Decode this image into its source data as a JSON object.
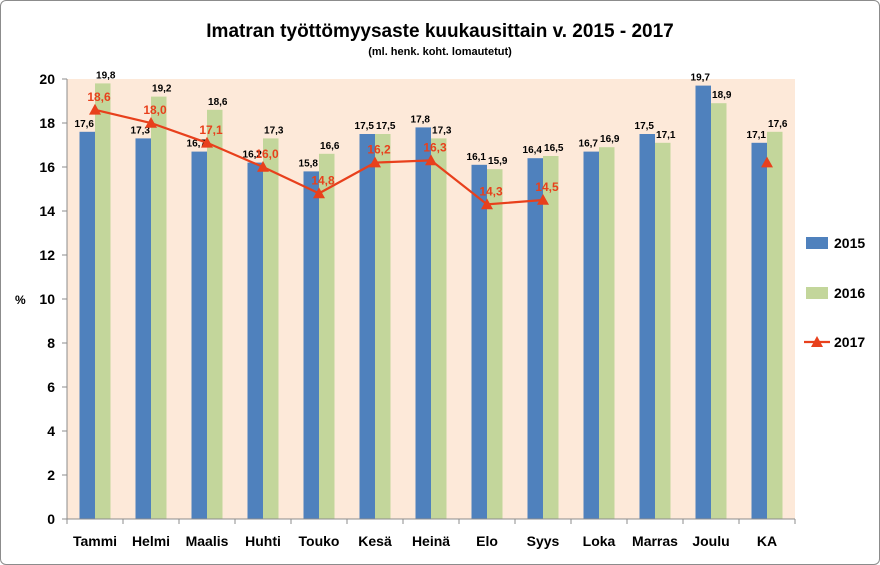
{
  "chart_data": {
    "type": "bar",
    "title": "Imatran työttömyysaste kuukausittain v.  2015 - 2017",
    "subtitle": "(ml. henk. koht. lomautetut)",
    "ylabel": "%",
    "xlabel": "",
    "ylim": [
      0,
      20
    ],
    "yticks": [
      "0",
      "2",
      "4",
      "6",
      "8",
      "10",
      "12",
      "14",
      "16",
      "18",
      "20"
    ],
    "categories": [
      "Tammi",
      "Helmi",
      "Maalis",
      "Huhti",
      "Touko",
      "Kesä",
      "Heinä",
      "Elo",
      "Syys",
      "Loka",
      "Marras",
      "Joulu",
      "KA"
    ],
    "series": [
      {
        "name": "2015",
        "type": "bar",
        "color": "#4f81bd",
        "values": [
          17.6,
          17.3,
          16.7,
          16.2,
          15.8,
          17.5,
          17.8,
          16.1,
          16.4,
          16.7,
          17.5,
          19.7,
          17.1
        ],
        "labels": [
          "17,6",
          "17,3",
          "16,7",
          "16,2",
          "15,8",
          "17,5",
          "17,8",
          "16,1",
          "16,4",
          "16,7",
          "17,5",
          "19,7",
          "17,1"
        ]
      },
      {
        "name": "2016",
        "type": "bar",
        "color": "#c3d69b",
        "values": [
          19.8,
          19.2,
          18.6,
          17.3,
          16.6,
          17.5,
          17.3,
          15.9,
          16.5,
          16.9,
          17.1,
          18.9,
          17.6
        ],
        "labels": [
          "19,8",
          "19,2",
          "18,6",
          "17,3",
          "16,6",
          "17,5",
          "17,3",
          "15,9",
          "16,5",
          "16,9",
          "17,1",
          "18,9",
          "17,6"
        ]
      },
      {
        "name": "2017",
        "type": "line",
        "color": "#e8401c",
        "values": [
          18.6,
          18.0,
          17.1,
          16.0,
          14.8,
          16.2,
          16.3,
          14.3,
          14.5,
          null,
          null,
          null,
          16.2
        ],
        "labels": [
          "18,6",
          "18,0",
          "17,1",
          "16,0",
          "14,8",
          "16,2",
          "16,3",
          "14,3",
          "14,5",
          "",
          "",
          "",
          ""
        ]
      }
    ],
    "plot_background": "#fde9d9",
    "grid": false,
    "legend_position": "right"
  }
}
